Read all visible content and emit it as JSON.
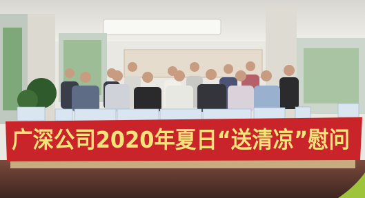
{
  "banner": {
    "text": "广深公司2020年夏日“送清凉”慰问"
  }
}
